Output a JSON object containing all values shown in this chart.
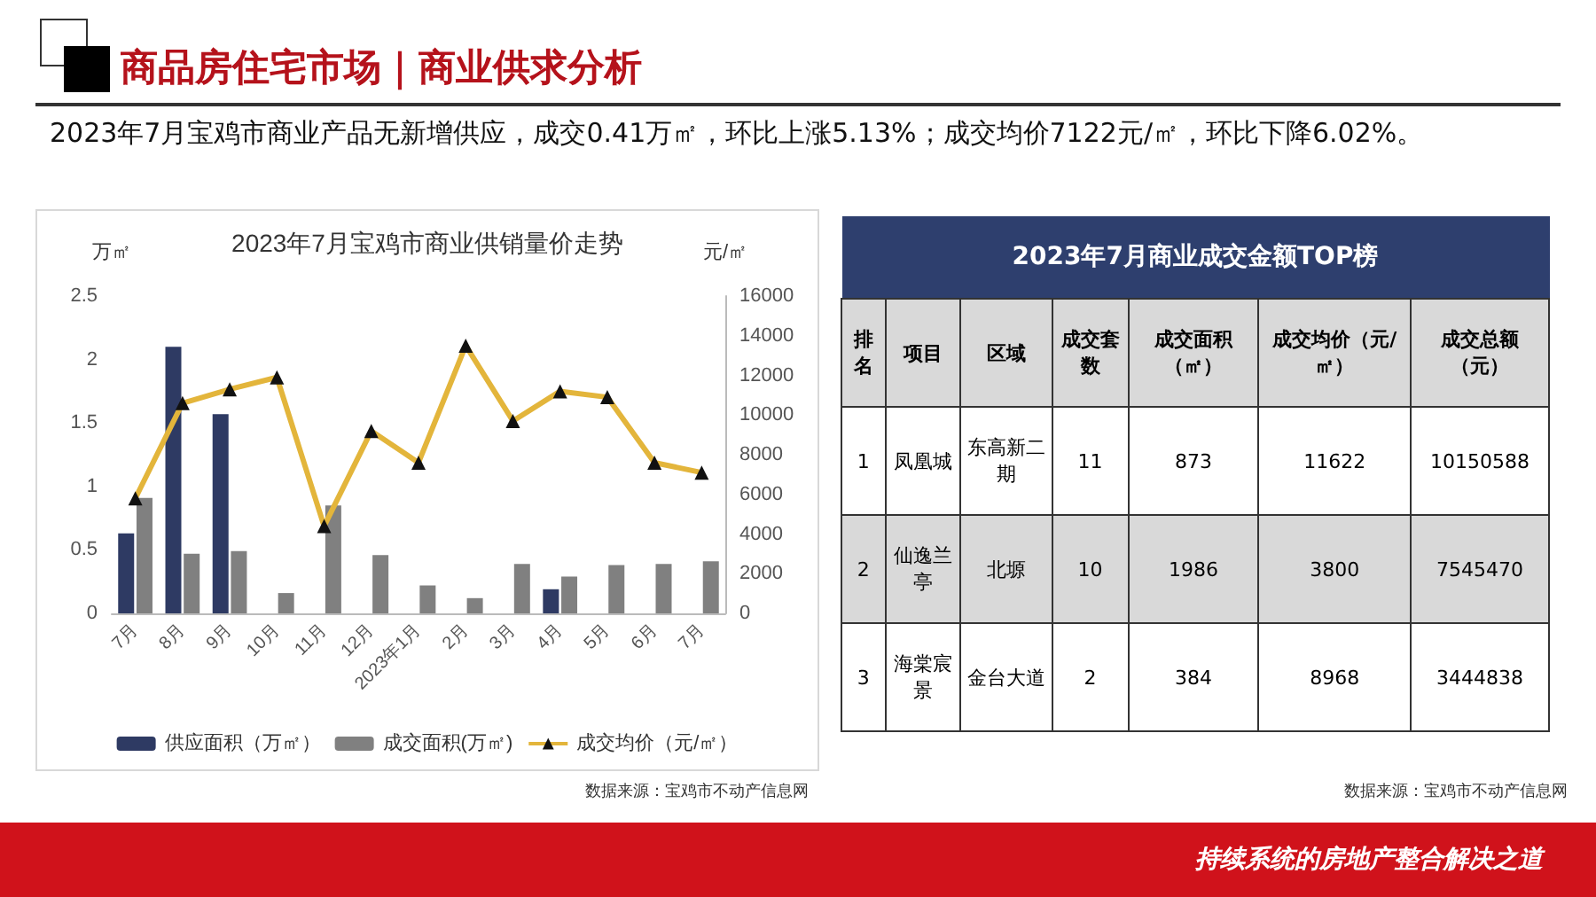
{
  "chart_data": [
    {
      "type": "bar",
      "title": "2023年7月宝鸡市商业供销量价走势",
      "ylabel": "万㎡",
      "y2label": "元/㎡",
      "annotations": [
        "商品房住宅市场｜商业供求分析",
        "2023年7月宝鸡市商业产品无新增供应，成交0.41万㎡，环比上涨5.13%；成交均价7122元/㎡，环比下降6.02%。",
        "数据来源：宝鸡市不动产信息网",
        "持续系统的房地产整合解决之道"
      ],
      "categories": [
        "7月",
        "8月",
        "9月",
        "10月",
        "11月",
        "12月",
        "2023年1月",
        "2月",
        "3月",
        "4月",
        "5月",
        "6月",
        "7月"
      ],
      "series": [
        {
          "name": "供应面积（万㎡）",
          "color": "#2e3a63",
          "values": [
            0.63,
            2.1,
            1.57,
            null,
            null,
            null,
            null,
            null,
            null,
            0.19,
            null,
            null,
            null
          ]
        },
        {
          "name": "成交面积(万㎡)",
          "color": "#808080",
          "values": [
            0.91,
            0.47,
            0.49,
            0.16,
            0.85,
            0.46,
            0.22,
            0.12,
            0.39,
            0.29,
            0.38,
            0.39,
            0.41
          ]
        },
        {
          "name": "成交均价（元/㎡）",
          "type": "line",
          "axis": "y2",
          "color": "#e3b53b",
          "marker": "triangle",
          "line_style": "solid",
          "values": [
            5800,
            10600,
            11300,
            11900,
            4400,
            9200,
            7600,
            13500,
            9700,
            11200,
            10900,
            7600,
            7100
          ]
        }
      ],
      "ylim": [
        0,
        2.5
      ],
      "yticks": [
        0,
        0.5,
        1,
        1.5,
        2,
        2.5
      ],
      "y2lim": [
        0,
        16000
      ],
      "y2ticks": [
        0,
        2000,
        4000,
        6000,
        8000,
        10000,
        12000,
        14000,
        16000
      ],
      "grid": false,
      "legend": "bottom"
    },
    {
      "type": "other",
      "title": "2023年7月商业成交金额TOP榜",
      "annotations": [
        "数据来源：宝鸡市不动产信息网"
      ],
      "categories": [
        "排名",
        "项目",
        "区域",
        "成交套数",
        "成交面积（㎡）",
        "成交均价（元/㎡）",
        "成交总额（元）"
      ],
      "cell_labels": [
        [
          "1",
          "凤凰城",
          "东高新二期",
          "11",
          "873",
          "11622",
          "10150588"
        ],
        [
          "2",
          "仙逸兰亭",
          "北塬",
          "10",
          "1986",
          "3800",
          "7545470"
        ],
        [
          "3",
          "海棠宸景",
          "金台大道",
          "2",
          "384",
          "8968",
          "3444838"
        ]
      ]
    }
  ]
}
